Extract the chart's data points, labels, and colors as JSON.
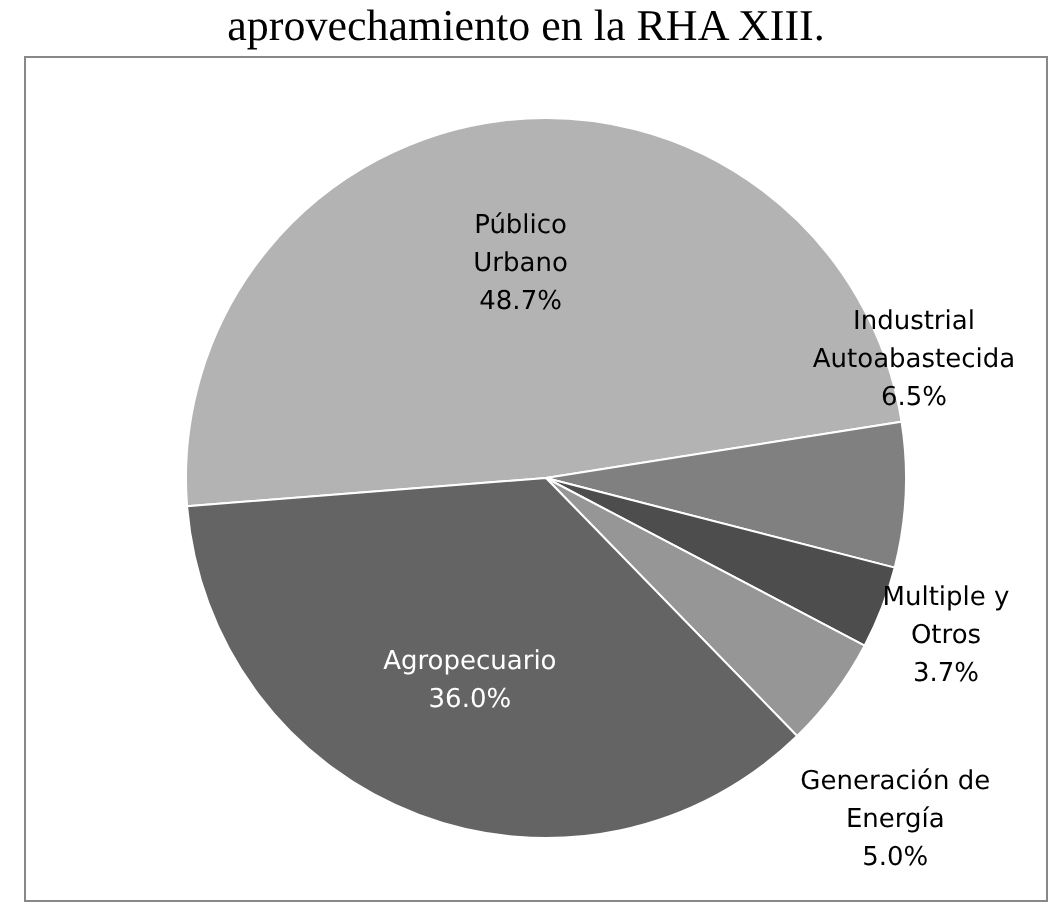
{
  "chart_data": {
    "type": "pie",
    "title": "aprovechamiento en la RHA XIII.",
    "categories": [
      "Público Urbano",
      "Industrial Autoabastecida",
      "Multiple y Otros",
      "Generación de Energía",
      "Agropecuario"
    ],
    "values": [
      48.7,
      6.5,
      3.7,
      5.0,
      36.0
    ],
    "value_labels": [
      "48.7%",
      "6.5%",
      "3.7%",
      "5.0%",
      "36.0%"
    ],
    "colors": [
      "#b3b3b3",
      "#808080",
      "#4d4d4d",
      "#969696",
      "#646464"
    ],
    "legend": false
  }
}
